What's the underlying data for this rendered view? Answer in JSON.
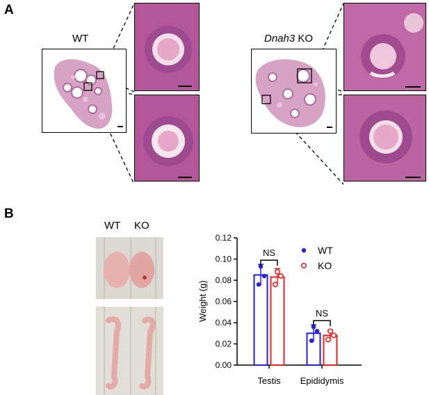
{
  "panel_a": {
    "letter": "A",
    "wt_label": "WT",
    "ko_gene": "Dnah3",
    "ko_suffix": " KO"
  },
  "panel_b": {
    "letter": "B",
    "photo_wt_label": "WT",
    "photo_ko_label": "KO"
  },
  "colors": {
    "wt": "#2222dd",
    "ko": "#ee2222",
    "he_stain": "#b75a9c",
    "tissue_bg": "#e9c6d6"
  },
  "chart_data": {
    "type": "bar",
    "categories": [
      "Testis",
      "Epididymis"
    ],
    "ylabel": "Weight (g)",
    "xlabel": "",
    "ylim": [
      0,
      0.12
    ],
    "yticks": [
      "0.00",
      "0.02",
      "0.04",
      "0.06",
      "0.08",
      "0.10",
      "0.12"
    ],
    "series": [
      {
        "name": "WT",
        "values": [
          0.085,
          0.03
        ],
        "errors": [
          0.01,
          0.008
        ],
        "points": [
          [
            0.093,
            0.084,
            0.076
          ],
          [
            0.036,
            0.032,
            0.023
          ]
        ]
      },
      {
        "name": "KO",
        "values": [
          0.083,
          0.028
        ],
        "errors": [
          0.008,
          0.005
        ],
        "points": [
          [
            0.088,
            0.084,
            0.076
          ],
          [
            0.032,
            0.028,
            0.024
          ]
        ]
      }
    ],
    "annotations": [
      "NS",
      "NS"
    ],
    "legend": "top-right",
    "grid": false
  }
}
